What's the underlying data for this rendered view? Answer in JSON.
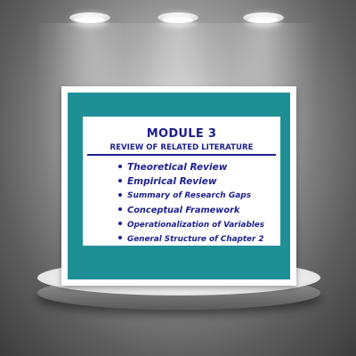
{
  "slide": {
    "title": "MODULE 3",
    "subtitle": "REVIEW OF RELATED LITERATURE",
    "topics": [
      "Theoretical Review",
      "Empirical Review",
      "Summary of Research Gaps",
      "Conceptual Framework",
      "Operationalization of Variables",
      "General Structure of Chapter 2"
    ]
  },
  "colors": {
    "teal_background": "#1f8f96",
    "title_text": "#1c1f8c",
    "panel": "#ffffff",
    "frame": "#ffffff",
    "podium": "#f0f0f0"
  },
  "icons": [
    "ceiling-light-icon",
    "bullet-icon"
  ]
}
